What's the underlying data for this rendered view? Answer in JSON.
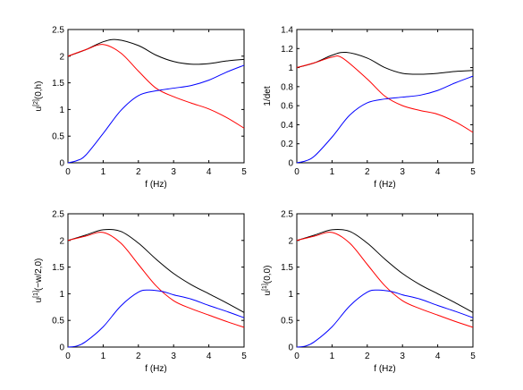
{
  "chart_data": [
    {
      "type": "line",
      "xlabel": "f (Hz)",
      "ylabel": "u",
      "ylabel_sup": "[2]",
      "ylabel_rest": "(0,h)",
      "xlim": [
        0,
        5
      ],
      "ylim": [
        0,
        2.5
      ],
      "xticks": [
        0,
        1,
        2,
        3,
        4,
        5
      ],
      "yticks": [
        0,
        0.5,
        1,
        1.5,
        2,
        2.5
      ],
      "xtick_labels": [
        "0",
        "1",
        "2",
        "3",
        "4",
        "5"
      ],
      "ytick_labels": [
        "0",
        "0.5",
        "1",
        "1.5",
        "2",
        "2.5"
      ],
      "grid": false,
      "series": [
        {
          "color": "#000000",
          "x": [
            0,
            0.5,
            1,
            1.4,
            2,
            2.5,
            3,
            3.5,
            4,
            4.5,
            5
          ],
          "y": [
            2.0,
            2.12,
            2.27,
            2.31,
            2.2,
            2.02,
            1.9,
            1.85,
            1.86,
            1.91,
            1.94
          ]
        },
        {
          "color": "#ff0000",
          "x": [
            0,
            0.5,
            1,
            1.5,
            2,
            2.5,
            3,
            3.5,
            4,
            4.5,
            5
          ],
          "y": [
            2.0,
            2.12,
            2.22,
            2.06,
            1.72,
            1.4,
            1.24,
            1.12,
            1.01,
            0.85,
            0.65
          ]
        },
        {
          "color": "#0000ff",
          "x": [
            0,
            0.25,
            0.5,
            1,
            1.5,
            2,
            2.5,
            3,
            3.5,
            4,
            4.5,
            5
          ],
          "y": [
            0,
            0.04,
            0.14,
            0.55,
            0.98,
            1.26,
            1.35,
            1.4,
            1.45,
            1.55,
            1.7,
            1.83
          ]
        }
      ]
    },
    {
      "type": "line",
      "xlabel": "f (Hz)",
      "ylabel": "1/det",
      "ylabel_sup": "",
      "ylabel_rest": "",
      "xlim": [
        0,
        5
      ],
      "ylim": [
        0,
        1.4
      ],
      "xticks": [
        0,
        1,
        2,
        3,
        4,
        5
      ],
      "yticks": [
        0,
        0.2,
        0.4,
        0.6,
        0.8,
        1,
        1.2,
        1.4
      ],
      "xtick_labels": [
        "0",
        "1",
        "2",
        "3",
        "4",
        "5"
      ],
      "ytick_labels": [
        "0",
        "0.2",
        "0.4",
        "0.6",
        "0.8",
        "1",
        "1.2",
        "1.4"
      ],
      "grid": false,
      "series": [
        {
          "color": "#000000",
          "x": [
            0,
            0.5,
            1,
            1.4,
            2,
            2.5,
            3,
            3.5,
            4,
            4.5,
            5
          ],
          "y": [
            1.0,
            1.05,
            1.13,
            1.16,
            1.1,
            1.0,
            0.94,
            0.93,
            0.94,
            0.96,
            0.97
          ]
        },
        {
          "color": "#ff0000",
          "x": [
            0,
            0.5,
            1,
            1.3,
            2,
            2.5,
            3,
            3.5,
            4,
            4.5,
            5
          ],
          "y": [
            1.0,
            1.05,
            1.11,
            1.1,
            0.88,
            0.7,
            0.6,
            0.55,
            0.51,
            0.43,
            0.32
          ]
        },
        {
          "color": "#0000ff",
          "x": [
            0,
            0.25,
            0.5,
            1,
            1.5,
            2,
            2.5,
            3,
            3.5,
            4,
            4.5,
            5
          ],
          "y": [
            0,
            0.02,
            0.07,
            0.27,
            0.5,
            0.63,
            0.67,
            0.69,
            0.71,
            0.76,
            0.84,
            0.91
          ]
        }
      ]
    },
    {
      "type": "line",
      "xlabel": "f (Hz)",
      "ylabel": "u",
      "ylabel_sup": "[1]",
      "ylabel_rest": "(−w/2,0)",
      "xlim": [
        0,
        5
      ],
      "ylim": [
        0,
        2.5
      ],
      "xticks": [
        0,
        1,
        2,
        3,
        4,
        5
      ],
      "yticks": [
        0,
        0.5,
        1,
        1.5,
        2,
        2.5
      ],
      "xtick_labels": [
        "0",
        "1",
        "2",
        "3",
        "4",
        "5"
      ],
      "ytick_labels": [
        "0",
        "0.5",
        "1",
        "1.5",
        "2",
        "2.5"
      ],
      "grid": false,
      "series": [
        {
          "color": "#000000",
          "x": [
            0,
            0.5,
            1,
            1.5,
            2,
            2.5,
            3,
            3.5,
            4,
            4.5,
            5
          ],
          "y": [
            2.0,
            2.1,
            2.2,
            2.17,
            1.95,
            1.65,
            1.38,
            1.17,
            1.0,
            0.83,
            0.65
          ]
        },
        {
          "color": "#ff0000",
          "x": [
            0,
            0.5,
            1,
            1.5,
            2,
            2.5,
            3,
            3.5,
            4,
            4.5,
            5
          ],
          "y": [
            2.0,
            2.08,
            2.15,
            1.95,
            1.55,
            1.15,
            0.87,
            0.72,
            0.6,
            0.48,
            0.37
          ]
        },
        {
          "color": "#0000ff",
          "x": [
            0,
            0.25,
            0.5,
            1,
            1.5,
            2,
            2.3,
            2.7,
            3,
            3.5,
            4,
            4.5,
            5
          ],
          "y": [
            0,
            0.02,
            0.1,
            0.38,
            0.77,
            1.03,
            1.07,
            1.04,
            0.98,
            0.9,
            0.78,
            0.67,
            0.55
          ]
        }
      ]
    },
    {
      "type": "line",
      "xlabel": "f (Hz)",
      "ylabel": "u",
      "ylabel_sup": "[1]",
      "ylabel_rest": "(0,0)",
      "xlim": [
        0,
        5
      ],
      "ylim": [
        0,
        2.5
      ],
      "xticks": [
        0,
        1,
        2,
        3,
        4,
        5
      ],
      "yticks": [
        0,
        0.5,
        1,
        1.5,
        2,
        2.5
      ],
      "xtick_labels": [
        "0",
        "1",
        "2",
        "3",
        "4",
        "5"
      ],
      "ytick_labels": [
        "0",
        "0.5",
        "1",
        "1.5",
        "2",
        "2.5"
      ],
      "grid": false,
      "series": [
        {
          "color": "#000000",
          "x": [
            0,
            0.5,
            1,
            1.5,
            2,
            2.5,
            3,
            3.5,
            4,
            4.5,
            5
          ],
          "y": [
            2.0,
            2.1,
            2.2,
            2.17,
            1.95,
            1.65,
            1.38,
            1.17,
            1.0,
            0.83,
            0.65
          ]
        },
        {
          "color": "#ff0000",
          "x": [
            0,
            0.5,
            1,
            1.5,
            2,
            2.5,
            3,
            3.5,
            4,
            4.5,
            5
          ],
          "y": [
            2.0,
            2.08,
            2.15,
            1.95,
            1.55,
            1.15,
            0.87,
            0.72,
            0.6,
            0.48,
            0.37
          ]
        },
        {
          "color": "#0000ff",
          "x": [
            0,
            0.25,
            0.5,
            1,
            1.5,
            2,
            2.3,
            2.7,
            3,
            3.5,
            4,
            4.5,
            5
          ],
          "y": [
            0,
            0.02,
            0.1,
            0.38,
            0.77,
            1.03,
            1.07,
            1.04,
            0.98,
            0.9,
            0.78,
            0.67,
            0.55
          ]
        }
      ]
    }
  ]
}
